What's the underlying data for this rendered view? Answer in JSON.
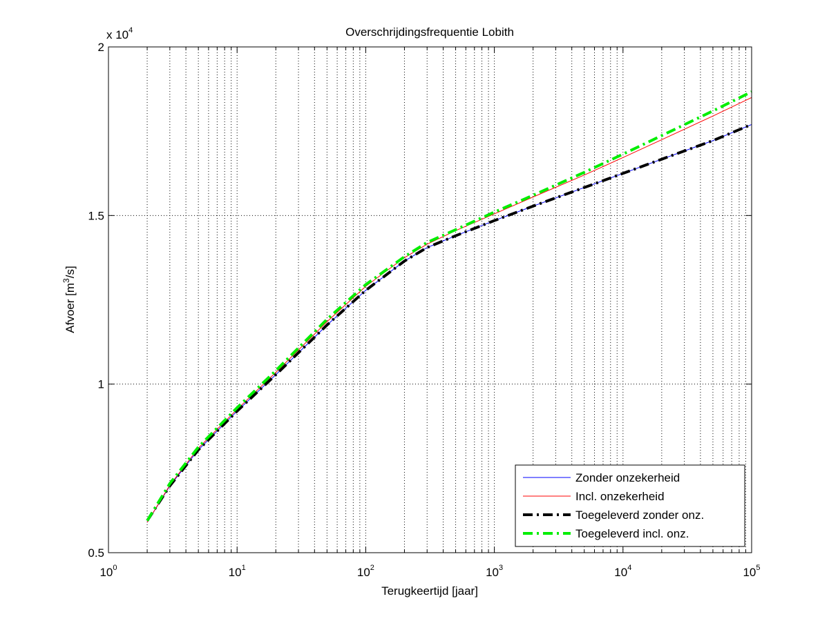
{
  "chart_data": {
    "type": "line",
    "title": "Overschrijdingsfrequentie Lobith",
    "xlabel": "Terugkeertijd [jaar]",
    "ylabel_prefix": "Afvoer [m",
    "ylabel_sup": "3",
    "ylabel_suffix": "/s]",
    "y_multiplier_base": "x 10",
    "y_multiplier_exp": "4",
    "xscale": "log",
    "xlim": [
      1,
      100000
    ],
    "ylim": [
      5000,
      20000
    ],
    "grid": true,
    "legend_position": "bottom-right",
    "xticks": [
      {
        "value": 1,
        "base": "10",
        "exp": "0"
      },
      {
        "value": 10,
        "base": "10",
        "exp": "1"
      },
      {
        "value": 100,
        "base": "10",
        "exp": "2"
      },
      {
        "value": 1000,
        "base": "10",
        "exp": "3"
      },
      {
        "value": 10000,
        "base": "10",
        "exp": "4"
      },
      {
        "value": 100000,
        "base": "10",
        "exp": "5"
      }
    ],
    "yticks": [
      {
        "value": 5000,
        "label": "0.5"
      },
      {
        "value": 10000,
        "label": "1"
      },
      {
        "value": 15000,
        "label": "1.5"
      },
      {
        "value": 20000,
        "label": "2"
      }
    ],
    "series": [
      {
        "name": "Zonder onzekerheid",
        "color": "#0000ff",
        "style": "solid",
        "width": 1,
        "x": [
          2,
          3,
          5,
          10,
          20,
          50,
          100,
          200,
          300,
          500,
          1000,
          2000,
          5000,
          10000,
          20000,
          50000,
          100000
        ],
        "y": [
          5900,
          6980,
          8050,
          9200,
          10280,
          11750,
          12780,
          13650,
          14050,
          14400,
          14850,
          15280,
          15830,
          16250,
          16670,
          17220,
          17700
        ]
      },
      {
        "name": "Incl. onzekerheid",
        "color": "#ff0000",
        "style": "solid",
        "width": 1,
        "x": [
          2,
          3,
          5,
          10,
          20,
          50,
          100,
          200,
          300,
          500,
          1000,
          2000,
          5000,
          10000,
          20000,
          50000,
          100000
        ],
        "y": [
          5900,
          7000,
          8100,
          9250,
          10350,
          11850,
          12900,
          13750,
          14150,
          14550,
          15050,
          15550,
          16200,
          16720,
          17250,
          17950,
          18500
        ]
      },
      {
        "name": "Toegeleverd zonder onz.",
        "color": "#000000",
        "style": "dashdot",
        "width": 4,
        "x": [
          2,
          3,
          5,
          10,
          20,
          50,
          100,
          200,
          300,
          500,
          1000,
          2000,
          5000,
          10000,
          20000,
          50000,
          100000
        ],
        "y": [
          5950,
          6980,
          8050,
          9200,
          10280,
          11750,
          12780,
          13650,
          14050,
          14400,
          14850,
          15280,
          15830,
          16250,
          16670,
          17220,
          17700
        ]
      },
      {
        "name": "Toegeleverd incl. onz.",
        "color": "#00ee00",
        "style": "dashdot",
        "width": 4,
        "x": [
          2,
          3,
          5,
          10,
          20,
          50,
          100,
          200,
          300,
          500,
          1000,
          2000,
          5000,
          10000,
          20000,
          50000,
          100000
        ],
        "y": [
          5950,
          7050,
          8130,
          9300,
          10400,
          11920,
          12950,
          13780,
          14200,
          14580,
          15100,
          15600,
          16280,
          16820,
          17370,
          18100,
          18670
        ]
      }
    ]
  }
}
